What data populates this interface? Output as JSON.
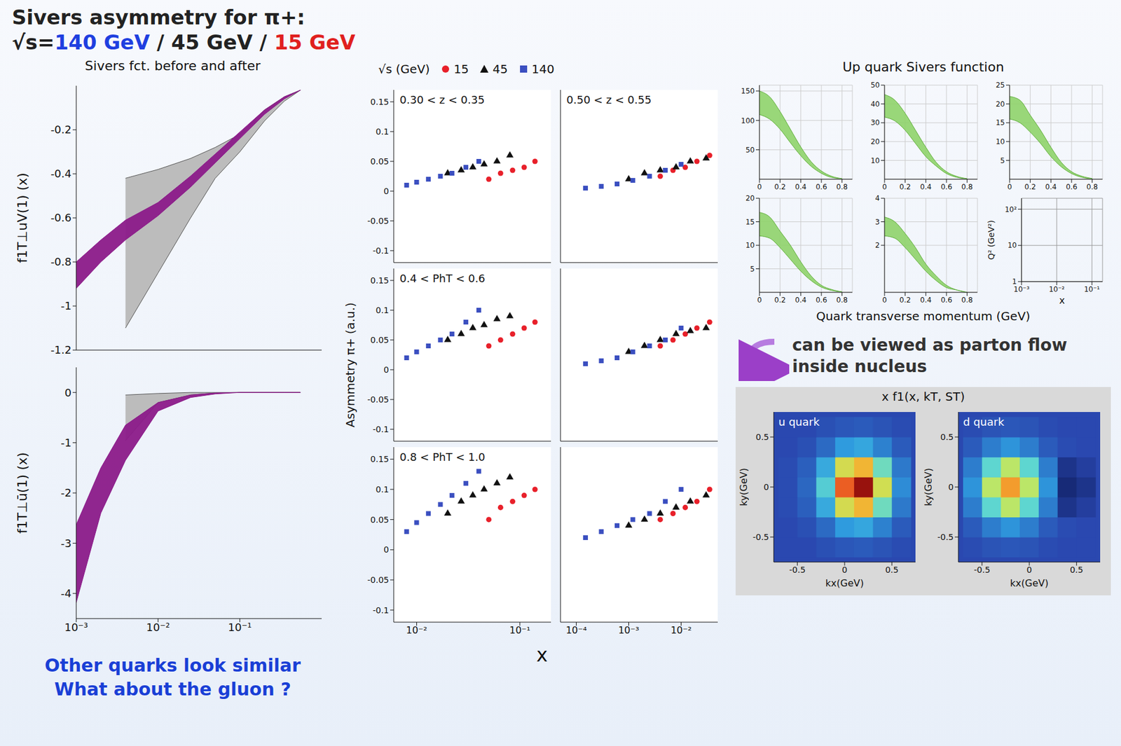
{
  "title_lines": [
    [
      {
        "text": "Sivers asymmetry for π+:",
        "color": "#222222"
      }
    ],
    [
      {
        "text": "√s=",
        "color": "#222222"
      },
      {
        "text": "140 GeV",
        "color": "#1f3fe0"
      },
      {
        "text": " / 45 GeV / ",
        "color": "#222222"
      },
      {
        "text": "15 GeV",
        "color": "#e0201e"
      }
    ]
  ],
  "annotations": {
    "flow": [
      "can be viewed as parton flow",
      "inside nucleus"
    ],
    "bottom": [
      "Other quarks look similar",
      "What about the gluon ?"
    ]
  },
  "chart_data": [
    {
      "type": "band",
      "title": "Sivers fct. before and after",
      "ylabel": "f1T⊥uV(1) (x)",
      "log": "x",
      "tick_labels": "y",
      "xlim": [
        0.001,
        1
      ],
      "xticks": [
        {
          "value": 0.001,
          "label": "10⁻³"
        },
        {
          "value": 0.01,
          "label": "10⁻²"
        },
        {
          "value": 0.1,
          "label": "10⁻¹"
        }
      ],
      "ylim": [
        -1.2,
        0
      ],
      "yticks": [
        -1.2,
        -1,
        -0.8,
        -0.6,
        -0.4,
        -0.2
      ],
      "x": [
        0.001,
        0.002,
        0.004,
        0.01,
        0.025,
        0.05,
        0.1,
        0.2,
        0.35,
        0.55
      ],
      "series": [
        {
          "color": "#b8b8b8",
          "low": [
            null,
            null,
            -1.1,
            -0.85,
            -0.6,
            -0.42,
            -0.3,
            -0.16,
            -0.07,
            -0.02
          ],
          "high": [
            null,
            null,
            -0.42,
            -0.38,
            -0.33,
            -0.28,
            -0.22,
            -0.11,
            -0.05,
            -0.02
          ]
        },
        {
          "color": "#8b1a89",
          "low": [
            -0.92,
            -0.8,
            -0.7,
            -0.59,
            -0.46,
            -0.35,
            -0.24,
            -0.13,
            -0.06,
            -0.02
          ],
          "high": [
            -0.8,
            -0.7,
            -0.61,
            -0.53,
            -0.41,
            -0.31,
            -0.21,
            -0.11,
            -0.05,
            -0.02
          ]
        }
      ]
    },
    {
      "type": "band",
      "ylabel": "f1T⊥ū(1) (x)",
      "log": "x",
      "xlim": [
        0.001,
        1
      ],
      "xticks": [
        {
          "value": 0.001,
          "label": "10⁻³"
        },
        {
          "value": 0.01,
          "label": "10⁻²"
        },
        {
          "value": 0.1,
          "label": "10⁻¹"
        }
      ],
      "ylim": [
        -4.5,
        0.5
      ],
      "yticks": [
        -4,
        -3,
        -2,
        -1,
        0
      ],
      "x": [
        0.001,
        0.002,
        0.004,
        0.01,
        0.025,
        0.05,
        0.1,
        0.2,
        0.35,
        0.55
      ],
      "series": [
        {
          "color": "#b8b8b8",
          "low": [
            null,
            null,
            -0.96,
            -0.2,
            -0.05,
            -0.01,
            0,
            0,
            0,
            0
          ],
          "high": [
            null,
            null,
            -0.05,
            -0.02,
            0,
            0,
            0,
            0,
            0,
            0
          ]
        },
        {
          "color": "#8b1a89",
          "low": [
            -4.18,
            -2.4,
            -1.35,
            -0.37,
            -0.1,
            -0.03,
            0,
            0,
            0,
            0
          ],
          "high": [
            -2.63,
            -1.5,
            -0.65,
            -0.2,
            -0.05,
            -0.01,
            0,
            0,
            0,
            0
          ]
        }
      ]
    },
    {
      "type": "scatter",
      "ylabel": "Asymmetry π+ (a.u.)",
      "xlabel": "x",
      "log": "x",
      "legend": "top",
      "legend_title": "√s (GeV)",
      "ylim": [
        -0.12,
        0.17
      ],
      "yticks": [
        -0.1,
        -0.05,
        0,
        0.05,
        0.1,
        0.15
      ],
      "series": [
        {
          "name": "15",
          "color": "#e8202a",
          "marker": "circle"
        },
        {
          "name": "45",
          "color": "#111111",
          "marker": "triangle"
        },
        {
          "name": "140",
          "color": "#3b4fc0",
          "marker": "square"
        }
      ],
      "columns": [
        {
          "xlim": [
            0.006,
            0.2
          ],
          "xticks": [
            {
              "value": 0.01,
              "label": "10⁻²"
            },
            {
              "value": 0.1,
              "label": "10⁻¹"
            }
          ],
          "x": [
            [
              0.05,
              0.065,
              0.085,
              0.11,
              0.14
            ],
            [
              0.02,
              0.027,
              0.035,
              0.045,
              0.06,
              0.08
            ],
            [
              0.008,
              0.01,
              0.013,
              0.017,
              0.022,
              0.03,
              0.04
            ]
          ]
        },
        {
          "xlim": [
            5e-05,
            0.05
          ],
          "xticks": [
            {
              "value": 0.0001,
              "label": "10⁻⁴"
            },
            {
              "value": 0.001,
              "label": "10⁻³"
            },
            {
              "value": 0.01,
              "label": "10⁻²"
            }
          ],
          "x": [
            [
              0.004,
              0.007,
              0.012,
              0.02,
              0.035
            ],
            [
              0.001,
              0.002,
              0.004,
              0.008,
              0.015,
              0.03
            ],
            [
              0.00015,
              0.0003,
              0.0006,
              0.0012,
              0.0025,
              0.005,
              0.01
            ]
          ]
        }
      ],
      "panels": [
        {
          "label": "0.30 < z < 0.35",
          "values": [
            [
              0.02,
              0.03,
              0.035,
              0.04,
              0.05
            ],
            [
              0.03,
              0.035,
              0.04,
              0.045,
              0.05,
              0.06
            ],
            [
              0.01,
              0.015,
              0.02,
              0.025,
              0.03,
              0.04,
              0.05
            ]
          ]
        },
        {
          "label": "0.50 < z < 0.55",
          "values": [
            [
              0.025,
              0.035,
              0.04,
              0.05,
              0.06
            ],
            [
              0.02,
              0.03,
              0.035,
              0.04,
              0.05,
              0.055
            ],
            [
              0.005,
              0.008,
              0.012,
              0.018,
              0.025,
              0.035,
              0.045
            ]
          ]
        },
        {
          "label": "0.4 < PhT < 0.6",
          "values": [
            [
              0.04,
              0.05,
              0.06,
              0.07,
              0.08
            ],
            [
              0.05,
              0.06,
              0.07,
              0.075,
              0.085,
              0.09
            ],
            [
              0.02,
              0.03,
              0.04,
              0.05,
              0.06,
              0.08,
              0.1
            ]
          ]
        },
        {
          "values": [
            [
              0.04,
              0.05,
              0.06,
              0.07,
              0.08
            ],
            [
              0.03,
              0.04,
              0.05,
              0.06,
              0.065,
              0.07
            ],
            [
              0.01,
              0.015,
              0.02,
              0.03,
              0.04,
              0.05,
              0.07
            ]
          ]
        },
        {
          "label": "0.8 < PhT < 1.0",
          "values": [
            [
              0.05,
              0.07,
              0.08,
              0.09,
              0.1
            ],
            [
              0.06,
              0.08,
              0.09,
              0.1,
              0.11,
              0.12
            ],
            [
              0.03,
              0.045,
              0.06,
              0.075,
              0.09,
              0.11,
              0.13
            ]
          ]
        },
        {
          "values": [
            [
              0.05,
              0.06,
              0.07,
              0.08,
              0.1
            ],
            [
              0.04,
              0.05,
              0.06,
              0.07,
              0.08,
              0.09
            ],
            [
              0.02,
              0.03,
              0.04,
              0.05,
              0.06,
              0.08,
              0.1
            ]
          ]
        }
      ]
    },
    {
      "type": "band",
      "title": "Up quark Sivers function",
      "xlabel": "Quark transverse momentum (GeV)",
      "color": "#8fd36a",
      "x": [
        0,
        0.1,
        0.2,
        0.3,
        0.4,
        0.5,
        0.6,
        0.7,
        0.8
      ],
      "xlim": [
        0,
        0.9
      ],
      "xticks": [
        0,
        0.2,
        0.4,
        0.6,
        0.8
      ],
      "panels": [
        {
          "ylim": [
            0,
            160
          ],
          "yticks": [
            50,
            100,
            150
          ],
          "low": [
            110,
            102,
            85,
            62,
            40,
            22,
            10,
            3,
            1
          ],
          "high": [
            150,
            140,
            115,
            85,
            55,
            30,
            14,
            5,
            1
          ]
        },
        {
          "ylim": [
            0,
            50
          ],
          "yticks": [
            10,
            20,
            30,
            40,
            50
          ],
          "low": [
            33,
            31,
            26,
            19,
            12,
            7,
            3,
            1,
            0.2
          ],
          "high": [
            45,
            42,
            35,
            26,
            17,
            9,
            4,
            1.5,
            0.3
          ]
        },
        {
          "ylim": [
            0,
            25
          ],
          "yticks": [
            5,
            10,
            15,
            20,
            25
          ],
          "low": [
            16,
            15,
            12.5,
            9.5,
            6,
            3.3,
            1.5,
            0.5,
            0.1
          ],
          "high": [
            22,
            21,
            17,
            13,
            8.5,
            4.5,
            2,
            0.8,
            0.2
          ]
        },
        {
          "ylim": [
            0,
            20
          ],
          "yticks": [
            5,
            10,
            15,
            20
          ],
          "low": [
            12,
            11.5,
            9.5,
            7,
            4.5,
            2.5,
            1.1,
            0.4,
            0.1
          ],
          "high": [
            17,
            16,
            13,
            10,
            6.5,
            3.5,
            1.5,
            0.6,
            0.1
          ]
        },
        {
          "ylim": [
            0,
            4
          ],
          "yticks": [
            2,
            3,
            4
          ],
          "low": [
            2.4,
            2.3,
            1.9,
            1.4,
            0.9,
            0.5,
            0.2,
            0.1,
            0
          ],
          "high": [
            3.2,
            3,
            2.5,
            1.9,
            1.2,
            0.7,
            0.3,
            0.1,
            0
          ]
        }
      ],
      "base": {
        "log": true,
        "xlabel": "x",
        "xlim": [
          0.001,
          0.2
        ],
        "xticks": [
          {
            "value": 0.001,
            "label": "10⁻³"
          },
          {
            "value": 0.01,
            "label": "10⁻²"
          },
          {
            "value": 0.1,
            "label": "10⁻¹"
          }
        ],
        "ylabel": "Q² (GeV²)",
        "ylim": [
          1,
          200
        ],
        "yticks": [
          1,
          10,
          {
            "value": 100,
            "label": "10²"
          }
        ]
      }
    },
    {
      "type": "heatmap",
      "title": "x f1(x, kT, ST)",
      "xlabel": "kx(GeV)",
      "ylabel": "ky(GeV)",
      "xlim": [
        -0.75,
        0.75
      ],
      "ylim": [
        -0.75,
        0.75
      ],
      "xticks": [
        -0.5,
        0,
        0.5
      ],
      "yticks": [
        -0.5,
        0,
        0.5
      ],
      "zlim": [
        -0.1,
        1
      ],
      "x": [
        -0.6,
        -0.4,
        -0.2,
        0,
        0.2,
        0.4,
        0.6
      ],
      "y": [
        -0.6,
        -0.4,
        -0.2,
        0,
        0.2,
        0.4,
        0.6
      ],
      "panels": [
        {
          "label": "u quark",
          "z": [
            [
              0,
              0,
              0.02,
              0.04,
              0.05,
              0.03,
              0.01
            ],
            [
              0,
              0.02,
              0.09,
              0.22,
              0.25,
              0.15,
              0.05
            ],
            [
              0.01,
              0.06,
              0.26,
              0.6,
              0.71,
              0.42,
              0.13
            ],
            [
              0.01,
              0.08,
              0.36,
              0.83,
              0.98,
              0.59,
              0.18
            ],
            [
              0.01,
              0.06,
              0.26,
              0.6,
              0.71,
              0.42,
              0.13
            ],
            [
              0,
              0.02,
              0.09,
              0.22,
              0.25,
              0.15,
              0.05
            ],
            [
              0,
              0,
              0.02,
              0.04,
              0.05,
              0.03,
              0.01
            ]
          ]
        },
        {
          "label": "d quark",
          "z": [
            [
              0.01,
              0.03,
              0.04,
              0.03,
              0.01,
              0,
              0
            ],
            [
              0.05,
              0.14,
              0.2,
              0.14,
              0.05,
              0.01,
              0
            ],
            [
              0.14,
              0.39,
              0.54,
              0.39,
              0.14,
              -0.04,
              -0.02
            ],
            [
              0.2,
              0.54,
              0.75,
              0.54,
              0.2,
              -0.06,
              -0.04
            ],
            [
              0.14,
              0.39,
              0.54,
              0.39,
              0.14,
              -0.04,
              -0.02
            ],
            [
              0.05,
              0.14,
              0.2,
              0.14,
              0.05,
              0.01,
              0
            ],
            [
              0.01,
              0.03,
              0.04,
              0.03,
              0.01,
              0,
              0
            ]
          ]
        }
      ]
    }
  ]
}
